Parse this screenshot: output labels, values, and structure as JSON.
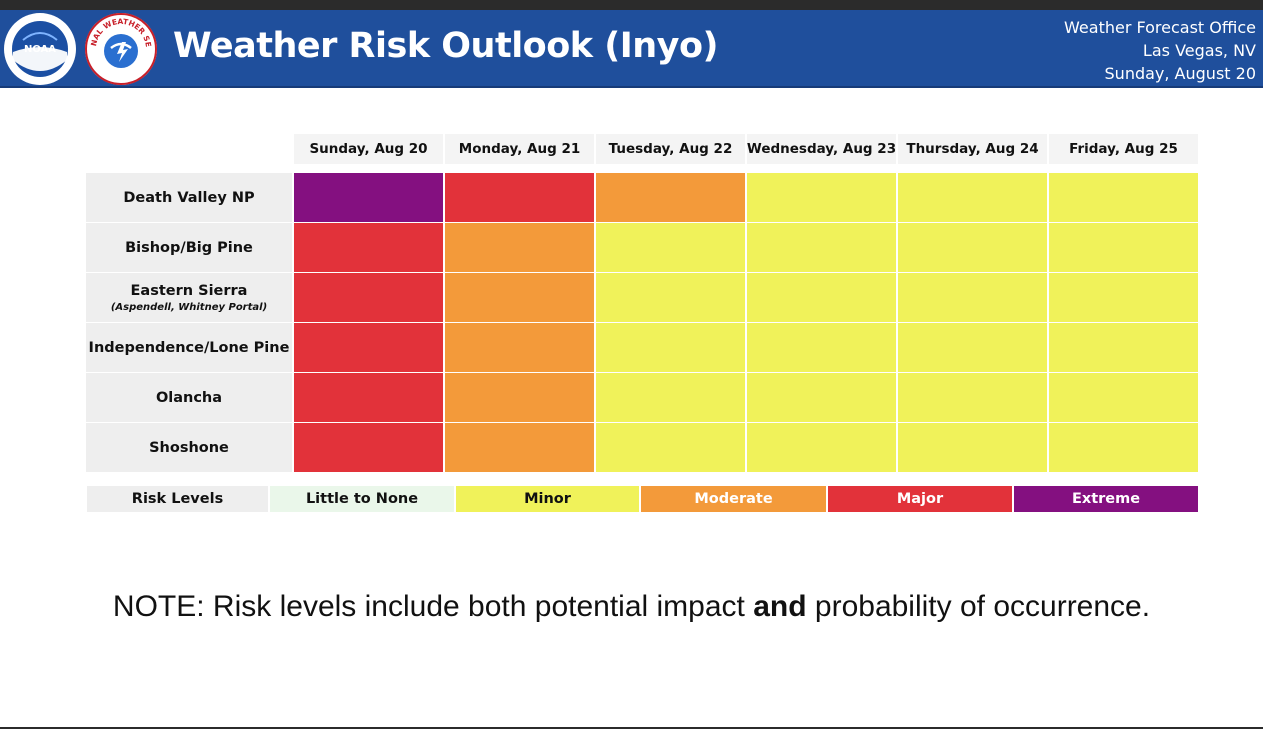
{
  "header": {
    "title": "Weather Risk Outlook (Inyo)",
    "office_line1": "Weather Forecast Office",
    "office_line2": "Las Vegas, NV",
    "office_line3": "Sunday, August 20",
    "noaa_logo_text": "NOAA",
    "nws_logo_text": "NATIONAL WEATHER SERVICE"
  },
  "columns": [
    "Sunday, Aug 20",
    "Monday, Aug 21",
    "Tuesday, Aug 22",
    "Wednesday, Aug 23",
    "Thursday, Aug 24",
    "Friday, Aug 25"
  ],
  "rows": [
    {
      "label": "Death Valley NP",
      "sublabel": "",
      "risks": [
        "Extreme",
        "Major",
        "Moderate",
        "Minor",
        "Minor",
        "Minor"
      ]
    },
    {
      "label": "Bishop/Big Pine",
      "sublabel": "",
      "risks": [
        "Major",
        "Moderate",
        "Minor",
        "Minor",
        "Minor",
        "Minor"
      ]
    },
    {
      "label": "Eastern Sierra",
      "sublabel": "(Aspendell, Whitney Portal)",
      "risks": [
        "Major",
        "Moderate",
        "Minor",
        "Minor",
        "Minor",
        "Minor"
      ]
    },
    {
      "label": "Independence/Lone Pine",
      "sublabel": "",
      "risks": [
        "Major",
        "Moderate",
        "Minor",
        "Minor",
        "Minor",
        "Minor"
      ]
    },
    {
      "label": "Olancha",
      "sublabel": "",
      "risks": [
        "Major",
        "Moderate",
        "Minor",
        "Minor",
        "Minor",
        "Minor"
      ]
    },
    {
      "label": "Shoshone",
      "sublabel": "",
      "risks": [
        "Major",
        "Moderate",
        "Minor",
        "Minor",
        "Minor",
        "Minor"
      ]
    }
  ],
  "legend": {
    "label": "Risk Levels",
    "levels": [
      {
        "name": "Little to None",
        "color": "#eaf7ea",
        "text_color": "#111111"
      },
      {
        "name": "Minor",
        "color": "#f0f25a",
        "text_color": "#111111"
      },
      {
        "name": "Moderate",
        "color": "#f39a3a",
        "text_color": "#ffffff"
      },
      {
        "name": "Major",
        "color": "#e2323a",
        "text_color": "#ffffff"
      },
      {
        "name": "Extreme",
        "color": "#841080",
        "text_color": "#ffffff"
      }
    ]
  },
  "note": {
    "prefix": "NOTE: Risk levels include both potential impact ",
    "bold": "and",
    "suffix": " probability of occurrence."
  }
}
